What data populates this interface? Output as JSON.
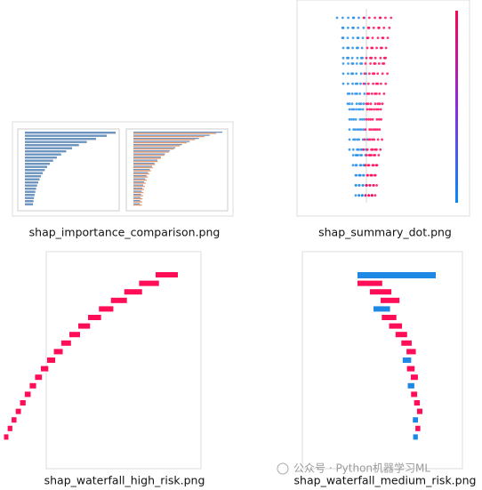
{
  "files": [
    {
      "name": "shap_importance_comparison.png"
    },
    {
      "name": "shap_summary_dot.png"
    },
    {
      "name": "shap_waterfall_high_risk.png"
    },
    {
      "name": "shap_waterfall_medium_risk.png"
    }
  ],
  "watermark": "公众号 · Python机器学习ML"
}
